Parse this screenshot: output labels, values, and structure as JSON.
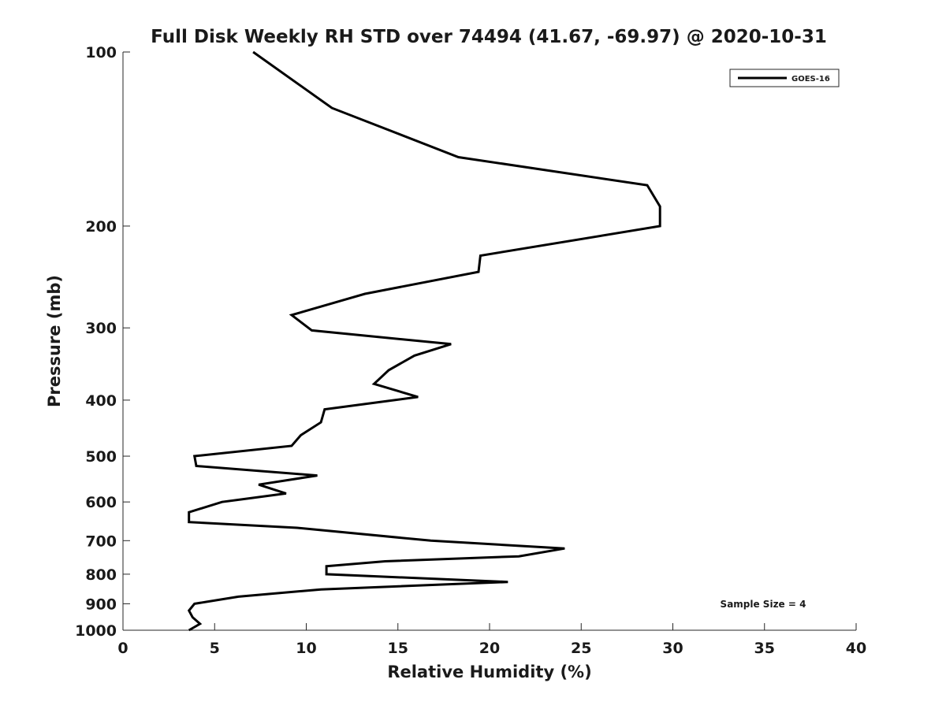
{
  "chart_data": {
    "type": "line",
    "title": "Full Disk Weekly RH STD over 74494 (41.67, -69.97) @ 2020-10-31",
    "xlabel": "Relative Humidity (%)",
    "ylabel": "Pressure (mb)",
    "xlim": [
      0,
      40
    ],
    "ylim": [
      1000,
      100
    ],
    "yscale": "log",
    "x_ticks": [
      0,
      5,
      10,
      15,
      20,
      25,
      30,
      35,
      40
    ],
    "y_ticks": [
      100,
      200,
      300,
      400,
      500,
      600,
      700,
      800,
      900,
      1000
    ],
    "legend_position": "top-right",
    "annotation": "Sample Size = 4",
    "series": [
      {
        "name": "GOES-16",
        "color": "#000000",
        "x": [
          7.1,
          11.4,
          18.3,
          28.6,
          29.3,
          29.3,
          19.5,
          19.4,
          13.2,
          9.2,
          10.3,
          17.9,
          15.9,
          14.5,
          13.7,
          16.1,
          11.0,
          10.8,
          9.7,
          9.2,
          3.9,
          4.0,
          10.6,
          7.4,
          8.9,
          5.4,
          3.6,
          3.6,
          9.5,
          16.8,
          24.1,
          21.6,
          14.3,
          11.1,
          11.1,
          21.0,
          10.8,
          6.3,
          3.9,
          3.6,
          3.8,
          4.2,
          3.6
        ],
        "y": [
          100,
          125,
          152,
          170,
          185,
          200,
          225,
          240,
          262,
          285,
          303,
          320,
          335,
          355,
          375,
          395,
          415,
          437,
          460,
          480,
          500,
          520,
          540,
          560,
          580,
          600,
          625,
          650,
          665,
          700,
          722,
          745,
          760,
          775,
          800,
          825,
          850,
          875,
          900,
          925,
          950,
          975,
          1000
        ]
      }
    ]
  }
}
